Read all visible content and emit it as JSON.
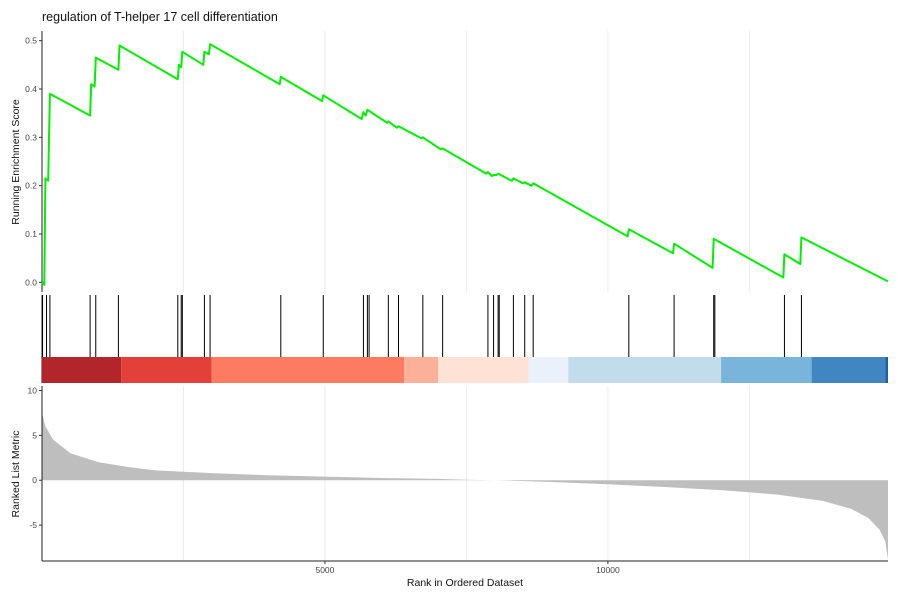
{
  "chart_data": {
    "type": "line",
    "title": "regulation of T-helper 17 cell differentiation",
    "xlabel": "Rank in Ordered Dataset",
    "xlim": [
      0,
      14950
    ],
    "x_ticks": [
      5000,
      10000
    ],
    "running_score": {
      "ylabel": "Running Enrichment Score",
      "ylim": [
        -0.02,
        0.52
      ],
      "y_ticks": [
        0.0,
        0.1,
        0.2,
        0.3,
        0.4,
        0.5
      ],
      "line_color": "#00ee00",
      "points": [
        [
          0,
          0.0
        ],
        [
          40,
          -0.005
        ],
        [
          60,
          0.215
        ],
        [
          110,
          0.21
        ],
        [
          140,
          0.39
        ],
        [
          850,
          0.345
        ],
        [
          870,
          0.41
        ],
        [
          930,
          0.405
        ],
        [
          950,
          0.465
        ],
        [
          1350,
          0.44
        ],
        [
          1370,
          0.49
        ],
        [
          2400,
          0.42
        ],
        [
          2420,
          0.45
        ],
        [
          2460,
          0.445
        ],
        [
          2480,
          0.477
        ],
        [
          2850,
          0.45
        ],
        [
          2870,
          0.477
        ],
        [
          2950,
          0.472
        ],
        [
          2970,
          0.493
        ],
        [
          4200,
          0.41
        ],
        [
          4220,
          0.425
        ],
        [
          4950,
          0.375
        ],
        [
          4970,
          0.387
        ],
        [
          5650,
          0.338
        ],
        [
          5680,
          0.352
        ],
        [
          5720,
          0.345
        ],
        [
          5750,
          0.357
        ],
        [
          6100,
          0.33
        ],
        [
          6120,
          0.333
        ],
        [
          6270,
          0.32
        ],
        [
          6300,
          0.323
        ],
        [
          6700,
          0.298
        ],
        [
          6730,
          0.3
        ],
        [
          7050,
          0.275
        ],
        [
          7080,
          0.277
        ],
        [
          7850,
          0.225
        ],
        [
          7880,
          0.228
        ],
        [
          7950,
          0.22
        ],
        [
          7980,
          0.222
        ],
        [
          8030,
          0.222
        ],
        [
          8060,
          0.225
        ],
        [
          8300,
          0.21
        ],
        [
          8330,
          0.215
        ],
        [
          8500,
          0.205
        ],
        [
          8530,
          0.207
        ],
        [
          8650,
          0.2
        ],
        [
          8680,
          0.205
        ],
        [
          10350,
          0.095
        ],
        [
          10370,
          0.11
        ],
        [
          11150,
          0.06
        ],
        [
          11170,
          0.08
        ],
        [
          11850,
          0.03
        ],
        [
          11870,
          0.09
        ],
        [
          13100,
          0.01
        ],
        [
          13120,
          0.058
        ],
        [
          13400,
          0.038
        ],
        [
          13420,
          0.093
        ],
        [
          14950,
          0.002
        ]
      ]
    },
    "gene_hits": [
      10,
      80,
      140,
      850,
      950,
      1350,
      2400,
      2460,
      2480,
      2870,
      2970,
      4220,
      4970,
      5680,
      5750,
      5780,
      6120,
      6300,
      6730,
      7080,
      7880,
      7980,
      8060,
      8080,
      8330,
      8530,
      8680,
      10370,
      11170,
      11870,
      11890,
      13120,
      13420
    ],
    "rank_color_bar": {
      "segments": [
        {
          "start": 0,
          "end": 1400,
          "color": "#b2262b"
        },
        {
          "start": 1400,
          "end": 3000,
          "color": "#e3403a"
        },
        {
          "start": 3000,
          "end": 6400,
          "color": "#fc7b61"
        },
        {
          "start": 6400,
          "end": 7000,
          "color": "#fbb09a"
        },
        {
          "start": 7000,
          "end": 8600,
          "color": "#fee2d6"
        },
        {
          "start": 8600,
          "end": 9300,
          "color": "#eaf1fb"
        },
        {
          "start": 9300,
          "end": 12000,
          "color": "#c3dceb"
        },
        {
          "start": 12000,
          "end": 13600,
          "color": "#79b5da"
        },
        {
          "start": 13600,
          "end": 14900,
          "color": "#4086c0"
        },
        {
          "start": 14900,
          "end": 14950,
          "color": "#225ea8"
        }
      ]
    },
    "ranked_metric": {
      "ylabel": "Ranked List Metric",
      "ylim": [
        -9,
        10.5
      ],
      "y_ticks": [
        -5,
        0,
        5,
        10
      ],
      "fill_color": "#bebebe",
      "points": [
        [
          0,
          7.5
        ],
        [
          60,
          6.0
        ],
        [
          200,
          4.5
        ],
        [
          500,
          3.0
        ],
        [
          1000,
          2.0
        ],
        [
          1500,
          1.5
        ],
        [
          2000,
          1.1
        ],
        [
          3000,
          0.8
        ],
        [
          4000,
          0.55
        ],
        [
          5000,
          0.4
        ],
        [
          6000,
          0.25
        ],
        [
          7000,
          0.15
        ],
        [
          7500,
          0.05
        ],
        [
          8000,
          0.0
        ],
        [
          9000,
          -0.2
        ],
        [
          10000,
          -0.45
        ],
        [
          11000,
          -0.75
        ],
        [
          12000,
          -1.1
        ],
        [
          13000,
          -1.6
        ],
        [
          13800,
          -2.3
        ],
        [
          14300,
          -3.2
        ],
        [
          14600,
          -4.2
        ],
        [
          14800,
          -5.5
        ],
        [
          14900,
          -6.8
        ],
        [
          14950,
          -8.8
        ]
      ]
    }
  }
}
